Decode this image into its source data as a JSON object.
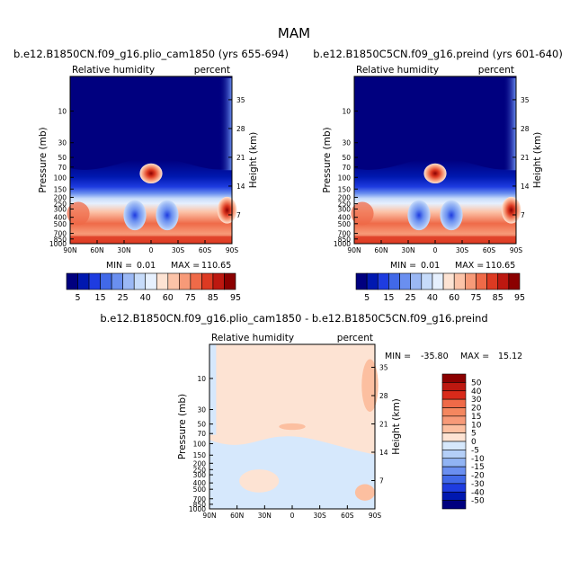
{
  "figure_title": "MAM",
  "chart_data": [
    {
      "type": "heatmap",
      "name": "pliocene",
      "title": "b.e12.B1850CN.f09_g16.plio_cam1850 (yrs 655-694)",
      "left_label": "Relative humidity",
      "right_label": "percent",
      "ylabel": "Pressure (mb)",
      "y2label": "Height (km)",
      "xticks": [
        "90N",
        "60N",
        "30N",
        "0",
        "30S",
        "60S",
        "90S"
      ],
      "pressure_ticks": [
        "10",
        "30",
        "50",
        "70",
        "100",
        "150",
        "200",
        "250",
        "300",
        "400",
        "500",
        "700",
        "850",
        "1000"
      ],
      "height_ticks": [
        "35",
        "28",
        "21",
        "14",
        "7"
      ],
      "min_label": "MIN =",
      "min_value": "0.01",
      "max_label": "MAX =",
      "max_value": "110.65",
      "colorbar_labels": [
        "5",
        "15",
        "25",
        "40",
        "60",
        "75",
        "85",
        "95"
      ]
    },
    {
      "type": "heatmap",
      "name": "preindustrial",
      "title": "b.e12.B1850C5CN.f09_g16.preind (yrs 601-640)",
      "left_label": "Relative humidity",
      "right_label": "percent",
      "ylabel": "Pressure (mb)",
      "y2label": "Height (km)",
      "xticks": [
        "90N",
        "60N",
        "30N",
        "0",
        "30S",
        "60S",
        "90S"
      ],
      "pressure_ticks": [
        "10",
        "30",
        "50",
        "70",
        "100",
        "150",
        "200",
        "250",
        "300",
        "400",
        "500",
        "700",
        "850",
        "1000"
      ],
      "height_ticks": [
        "35",
        "28",
        "21",
        "14",
        "7"
      ],
      "min_label": "MIN =",
      "min_value": "0.01",
      "max_label": "MAX =",
      "max_value": "110.65",
      "colorbar_labels": [
        "5",
        "15",
        "25",
        "40",
        "60",
        "75",
        "85",
        "95"
      ]
    },
    {
      "type": "heatmap",
      "name": "difference",
      "title": "b.e12.B1850CN.f09_g16.plio_cam1850 - b.e12.B1850C5CN.f09_g16.preind",
      "left_label": "Relative humidity",
      "right_label": "percent",
      "ylabel": "Pressure (mb)",
      "y2label": "Height (km)",
      "xticks": [
        "90N",
        "60N",
        "30N",
        "0",
        "30S",
        "60S",
        "90S"
      ],
      "pressure_ticks": [
        "10",
        "30",
        "50",
        "70",
        "100",
        "150",
        "200",
        "250",
        "300",
        "400",
        "500",
        "700",
        "850",
        "1000"
      ],
      "height_ticks": [
        "35",
        "28",
        "21",
        "14",
        "7"
      ],
      "min_label": "MIN =",
      "min_value": "-35.80",
      "max_label": "MAX =",
      "max_value": "15.12",
      "colorbar_labels": [
        "50",
        "40",
        "30",
        "20",
        "15",
        "10",
        "5",
        "0",
        "-5",
        "-10",
        "-15",
        "-20",
        "-30",
        "-40",
        "-50"
      ]
    }
  ],
  "colors": {
    "rh_scale": [
      "#00007f",
      "#0018b0",
      "#1e3ce0",
      "#4169e8",
      "#6a8ff0",
      "#9bb8f5",
      "#c6dbfa",
      "#e6f0fe",
      "#fde3d3",
      "#fcc3a8",
      "#f79a78",
      "#ef6a48",
      "#dd3a22",
      "#bd1810",
      "#8b0000"
    ],
    "diff_scale": [
      "#8b0000",
      "#bd1810",
      "#d92a1a",
      "#ef6a48",
      "#f4875f",
      "#f79a78",
      "#fcbfa0",
      "#fde3d3",
      "#d6e8fc",
      "#b4cff8",
      "#91b4f4",
      "#6a8ff0",
      "#4169e8",
      "#1e3ce0",
      "#0018b0",
      "#00007f"
    ],
    "diff_positive": "#fde3d3",
    "diff_negative": "#d6e8fc"
  }
}
